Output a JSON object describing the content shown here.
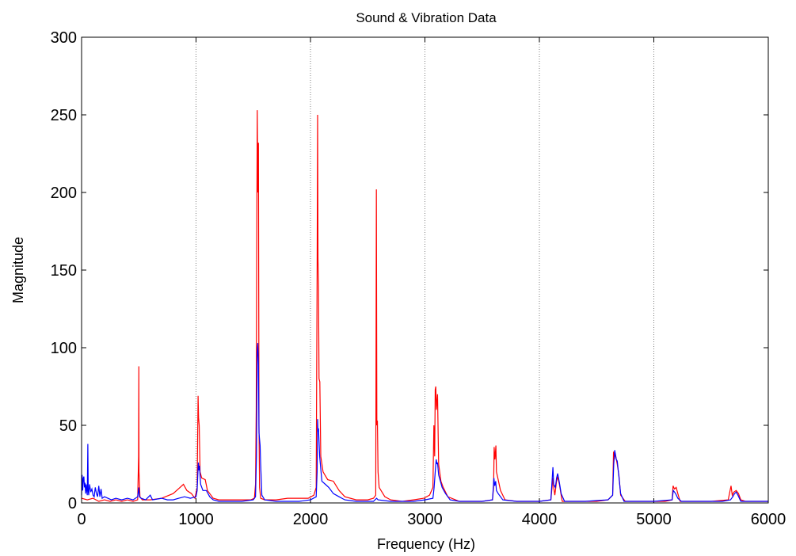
{
  "chart_data": {
    "type": "line",
    "title": "Sound & Vibration Data",
    "xlabel": "Frequency (Hz)",
    "ylabel": "Magnitude",
    "xlim": [
      0,
      6000
    ],
    "ylim": [
      0,
      300
    ],
    "x_ticks": [
      "0",
      "1000",
      "2000",
      "3000",
      "4000",
      "5000",
      "6000"
    ],
    "y_ticks": [
      "0",
      "50",
      "100",
      "150",
      "200",
      "250",
      "300"
    ],
    "grid": "x-only",
    "legend": "none",
    "series": [
      {
        "color": "#ff0000",
        "points": [
          [
            0,
            3
          ],
          [
            50,
            2
          ],
          [
            100,
            3
          ],
          [
            150,
            1
          ],
          [
            200,
            2
          ],
          [
            250,
            1
          ],
          [
            300,
            2
          ],
          [
            350,
            1
          ],
          [
            400,
            2
          ],
          [
            450,
            1
          ],
          [
            490,
            2
          ],
          [
            498,
            30
          ],
          [
            500,
            88
          ],
          [
            502,
            20
          ],
          [
            510,
            4
          ],
          [
            530,
            2
          ],
          [
            600,
            2
          ],
          [
            700,
            3
          ],
          [
            800,
            6
          ],
          [
            860,
            10
          ],
          [
            890,
            12
          ],
          [
            920,
            8
          ],
          [
            960,
            6
          ],
          [
            990,
            3
          ],
          [
            1010,
            10
          ],
          [
            1018,
            69
          ],
          [
            1022,
            55
          ],
          [
            1028,
            50
          ],
          [
            1035,
            20
          ],
          [
            1050,
            16
          ],
          [
            1080,
            15
          ],
          [
            1100,
            8
          ],
          [
            1150,
            3
          ],
          [
            1200,
            2
          ],
          [
            1300,
            2
          ],
          [
            1400,
            2
          ],
          [
            1480,
            2
          ],
          [
            1510,
            3
          ],
          [
            1520,
            12
          ],
          [
            1526,
            60
          ],
          [
            1530,
            160
          ],
          [
            1535,
            253
          ],
          [
            1540,
            200
          ],
          [
            1545,
            232
          ],
          [
            1550,
            50
          ],
          [
            1555,
            10
          ],
          [
            1565,
            3
          ],
          [
            1600,
            2
          ],
          [
            1700,
            2
          ],
          [
            1800,
            3
          ],
          [
            1900,
            3
          ],
          [
            1980,
            3
          ],
          [
            2030,
            5
          ],
          [
            2050,
            10
          ],
          [
            2058,
            150
          ],
          [
            2062,
            250
          ],
          [
            2066,
            157
          ],
          [
            2070,
            140
          ],
          [
            2075,
            80
          ],
          [
            2082,
            78
          ],
          [
            2090,
            30
          ],
          [
            2110,
            20
          ],
          [
            2150,
            15
          ],
          [
            2200,
            14
          ],
          [
            2250,
            8
          ],
          [
            2300,
            4
          ],
          [
            2400,
            2
          ],
          [
            2500,
            2
          ],
          [
            2550,
            3
          ],
          [
            2570,
            5
          ],
          [
            2576,
            202
          ],
          [
            2580,
            50
          ],
          [
            2585,
            53
          ],
          [
            2590,
            20
          ],
          [
            2600,
            10
          ],
          [
            2650,
            4
          ],
          [
            2700,
            2
          ],
          [
            2800,
            1
          ],
          [
            2900,
            2
          ],
          [
            2990,
            3
          ],
          [
            3040,
            5
          ],
          [
            3070,
            10
          ],
          [
            3078,
            50
          ],
          [
            3085,
            30
          ],
          [
            3090,
            73
          ],
          [
            3095,
            75
          ],
          [
            3100,
            60
          ],
          [
            3110,
            70
          ],
          [
            3120,
            25
          ],
          [
            3140,
            14
          ],
          [
            3160,
            10
          ],
          [
            3200,
            4
          ],
          [
            3300,
            1
          ],
          [
            3400,
            1
          ],
          [
            3500,
            1
          ],
          [
            3590,
            2
          ],
          [
            3600,
            10
          ],
          [
            3605,
            36
          ],
          [
            3612,
            28
          ],
          [
            3620,
            37
          ],
          [
            3625,
            20
          ],
          [
            3640,
            15
          ],
          [
            3660,
            8
          ],
          [
            3700,
            2
          ],
          [
            3800,
            1
          ],
          [
            3900,
            1
          ],
          [
            4000,
            1
          ],
          [
            4100,
            2
          ],
          [
            4118,
            16
          ],
          [
            4125,
            10
          ],
          [
            4135,
            5
          ],
          [
            4150,
            14
          ],
          [
            4160,
            17
          ],
          [
            4175,
            12
          ],
          [
            4190,
            5
          ],
          [
            4200,
            1
          ],
          [
            4300,
            1
          ],
          [
            4500,
            1
          ],
          [
            4600,
            2
          ],
          [
            4640,
            5
          ],
          [
            4648,
            33
          ],
          [
            4655,
            28
          ],
          [
            4662,
            32
          ],
          [
            4670,
            29
          ],
          [
            4680,
            25
          ],
          [
            4695,
            18
          ],
          [
            4710,
            5
          ],
          [
            4750,
            1
          ],
          [
            4900,
            1
          ],
          [
            5100,
            1
          ],
          [
            5160,
            2
          ],
          [
            5168,
            11
          ],
          [
            5180,
            9
          ],
          [
            5195,
            10
          ],
          [
            5210,
            6
          ],
          [
            5230,
            1
          ],
          [
            5500,
            1
          ],
          [
            5650,
            2
          ],
          [
            5675,
            11
          ],
          [
            5685,
            5
          ],
          [
            5700,
            7
          ],
          [
            5720,
            8
          ],
          [
            5740,
            6
          ],
          [
            5760,
            2
          ],
          [
            5800,
            1
          ],
          [
            6000,
            1
          ]
        ]
      },
      {
        "color": "#0000ff",
        "points": [
          [
            0,
            5
          ],
          [
            5,
            18
          ],
          [
            10,
            8
          ],
          [
            15,
            16
          ],
          [
            20,
            17
          ],
          [
            25,
            10
          ],
          [
            30,
            13
          ],
          [
            35,
            6
          ],
          [
            40,
            12
          ],
          [
            45,
            8
          ],
          [
            50,
            5
          ],
          [
            55,
            38
          ],
          [
            58,
            8
          ],
          [
            62,
            5
          ],
          [
            70,
            12
          ],
          [
            80,
            7
          ],
          [
            90,
            9
          ],
          [
            100,
            5
          ],
          [
            110,
            4
          ],
          [
            120,
            10
          ],
          [
            130,
            6
          ],
          [
            140,
            4
          ],
          [
            150,
            11
          ],
          [
            160,
            4
          ],
          [
            170,
            9
          ],
          [
            180,
            3
          ],
          [
            200,
            4
          ],
          [
            230,
            3
          ],
          [
            260,
            2
          ],
          [
            300,
            3
          ],
          [
            350,
            2
          ],
          [
            400,
            3
          ],
          [
            450,
            2
          ],
          [
            490,
            4
          ],
          [
            500,
            10
          ],
          [
            505,
            4
          ],
          [
            520,
            3
          ],
          [
            560,
            2
          ],
          [
            600,
            5
          ],
          [
            620,
            2
          ],
          [
            700,
            3
          ],
          [
            750,
            2
          ],
          [
            800,
            2
          ],
          [
            850,
            3
          ],
          [
            900,
            4
          ],
          [
            950,
            3
          ],
          [
            1000,
            4
          ],
          [
            1010,
            8
          ],
          [
            1020,
            26
          ],
          [
            1025,
            21
          ],
          [
            1030,
            24
          ],
          [
            1040,
            12
          ],
          [
            1060,
            8
          ],
          [
            1090,
            8
          ],
          [
            1120,
            4
          ],
          [
            1150,
            2
          ],
          [
            1200,
            1
          ],
          [
            1300,
            1
          ],
          [
            1400,
            1
          ],
          [
            1500,
            2
          ],
          [
            1520,
            4
          ],
          [
            1528,
            30
          ],
          [
            1535,
            98
          ],
          [
            1540,
            103
          ],
          [
            1545,
            89
          ],
          [
            1550,
            45
          ],
          [
            1560,
            37
          ],
          [
            1565,
            25
          ],
          [
            1575,
            5
          ],
          [
            1600,
            2
          ],
          [
            1700,
            1
          ],
          [
            1800,
            1
          ],
          [
            1900,
            1
          ],
          [
            2000,
            2
          ],
          [
            2050,
            4
          ],
          [
            2058,
            20
          ],
          [
            2062,
            54
          ],
          [
            2066,
            46
          ],
          [
            2070,
            48
          ],
          [
            2080,
            30
          ],
          [
            2100,
            14
          ],
          [
            2130,
            12
          ],
          [
            2160,
            10
          ],
          [
            2200,
            6
          ],
          [
            2250,
            4
          ],
          [
            2300,
            2
          ],
          [
            2400,
            1
          ],
          [
            2550,
            1
          ],
          [
            2578,
            3
          ],
          [
            2590,
            2
          ],
          [
            2700,
            1
          ],
          [
            2900,
            1
          ],
          [
            3000,
            2
          ],
          [
            3070,
            3
          ],
          [
            3080,
            10
          ],
          [
            3090,
            20
          ],
          [
            3098,
            28
          ],
          [
            3105,
            25
          ],
          [
            3110,
            26
          ],
          [
            3120,
            18
          ],
          [
            3150,
            10
          ],
          [
            3180,
            6
          ],
          [
            3220,
            2
          ],
          [
            3300,
            1
          ],
          [
            3500,
            1
          ],
          [
            3590,
            2
          ],
          [
            3603,
            16
          ],
          [
            3610,
            11
          ],
          [
            3618,
            14
          ],
          [
            3625,
            8
          ],
          [
            3640,
            6
          ],
          [
            3680,
            2
          ],
          [
            3800,
            1
          ],
          [
            4000,
            1
          ],
          [
            4100,
            2
          ],
          [
            4118,
            23
          ],
          [
            4125,
            12
          ],
          [
            4140,
            10
          ],
          [
            4150,
            16
          ],
          [
            4160,
            19
          ],
          [
            4175,
            13
          ],
          [
            4190,
            6
          ],
          [
            4220,
            1
          ],
          [
            4400,
            1
          ],
          [
            4600,
            2
          ],
          [
            4640,
            5
          ],
          [
            4650,
            25
          ],
          [
            4658,
            34
          ],
          [
            4665,
            31
          ],
          [
            4672,
            28
          ],
          [
            4680,
            27
          ],
          [
            4695,
            17
          ],
          [
            4710,
            6
          ],
          [
            4740,
            1
          ],
          [
            5000,
            1
          ],
          [
            5160,
            2
          ],
          [
            5170,
            8
          ],
          [
            5190,
            6
          ],
          [
            5210,
            3
          ],
          [
            5240,
            1
          ],
          [
            5600,
            1
          ],
          [
            5670,
            2
          ],
          [
            5690,
            4
          ],
          [
            5705,
            6
          ],
          [
            5720,
            7
          ],
          [
            5735,
            5
          ],
          [
            5760,
            1
          ],
          [
            6000,
            1
          ]
        ]
      }
    ]
  }
}
